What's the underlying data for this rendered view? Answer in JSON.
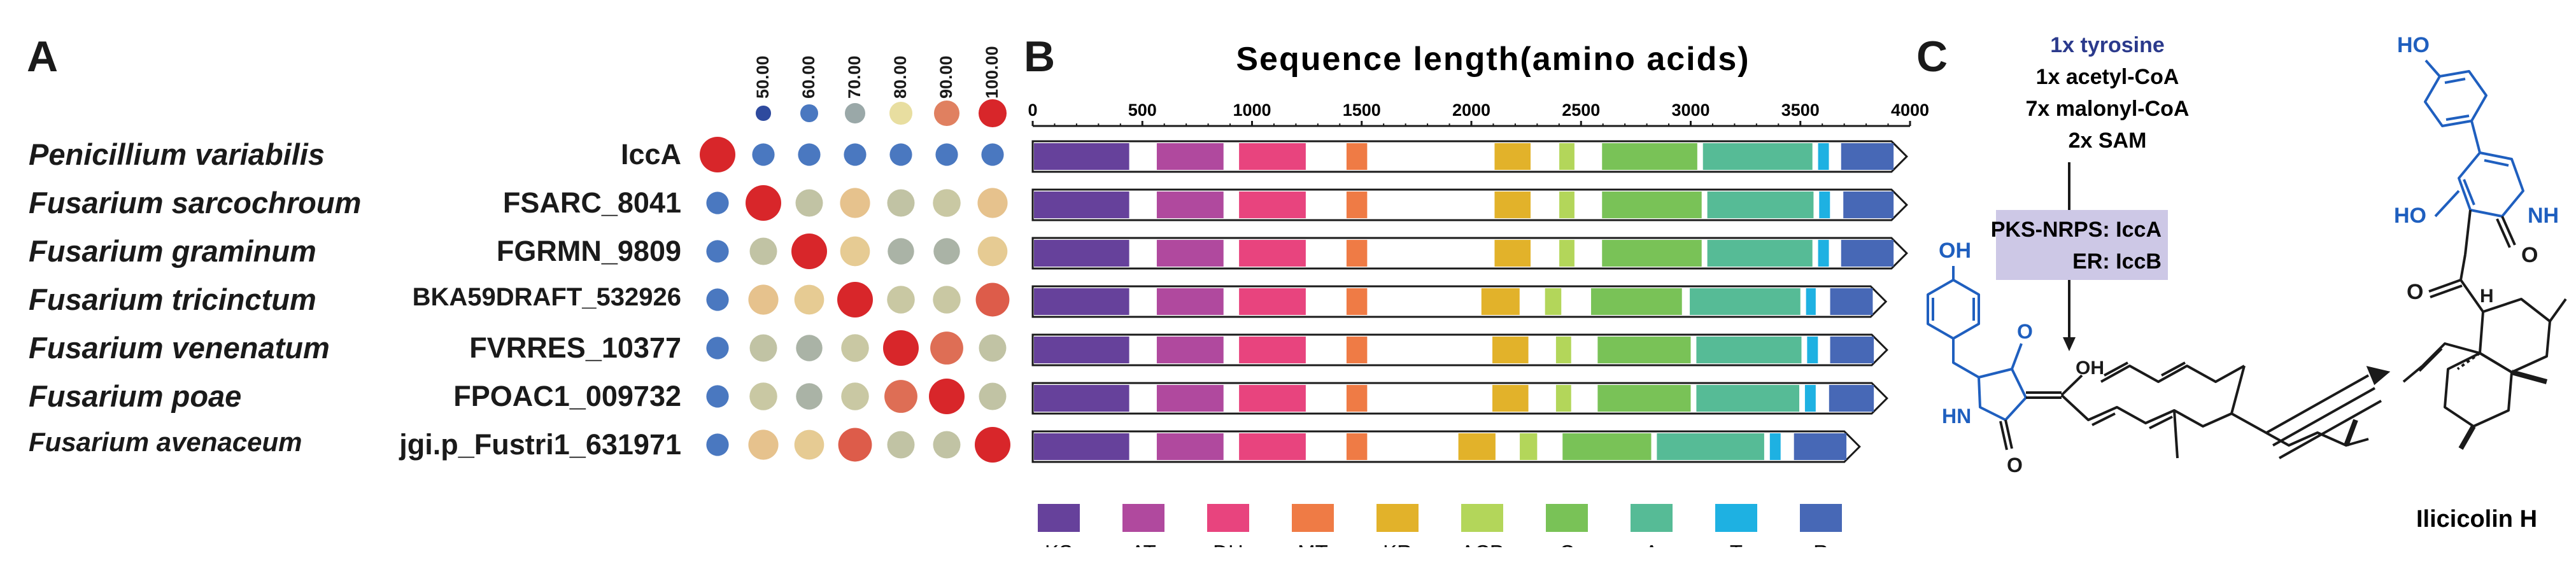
{
  "panels": {
    "a": "A",
    "b": "B",
    "c": "C"
  },
  "colors": {
    "heat_50": "#2e4a9e",
    "heat_60": "#4a78c0",
    "heat_70": "#9aa8a8",
    "heat_80": "#e8dea0",
    "heat_90": "#e08060",
    "heat_100": "#d8262a",
    "chem_blue": "#1f5fbf",
    "precursor_text": "#2b3a8c",
    "enzyme_box": "#cdc8e6"
  },
  "identity_scale": {
    "labels": [
      "50.00",
      "60.00",
      "70.00",
      "80.00",
      "90.00",
      "100.00"
    ],
    "values": [
      50,
      60,
      70,
      80,
      90,
      100
    ]
  },
  "organisms": [
    {
      "species": "Penicillium variabilis",
      "gene": "IccA",
      "identity": [
        100,
        60,
        60,
        60,
        60,
        60,
        60
      ]
    },
    {
      "species": "Fusarium sarcochroum",
      "gene": "FSARC_8041",
      "identity": [
        60,
        100,
        75,
        83,
        75,
        76,
        83
      ]
    },
    {
      "species": "Fusarium graminum",
      "gene": "FGRMN_9809",
      "identity": [
        60,
        75,
        100,
        82,
        72,
        72,
        82
      ]
    },
    {
      "species": "Fusarium tricinctum",
      "gene": "BKA59DRAFT_532926",
      "identity": [
        60,
        83,
        82,
        100,
        76,
        76,
        94
      ]
    },
    {
      "species": "Fusarium venenatum",
      "gene": "FVRRES_10377",
      "identity": [
        60,
        75,
        72,
        76,
        100,
        92,
        75
      ]
    },
    {
      "species": "Fusarium poae",
      "gene": "FPOAC1_009732",
      "identity": [
        60,
        76,
        72,
        76,
        92,
        100,
        75
      ]
    },
    {
      "species": "Fusarium avenaceum",
      "gene": "jgi.p_Fustri1_631971",
      "identity": [
        60,
        83,
        82,
        94,
        75,
        75,
        100
      ]
    }
  ],
  "chart_data": {
    "type": "bar",
    "title": "Sequence length(amino acids)",
    "xlim": [
      0,
      4000
    ],
    "ticks": [
      0,
      500,
      1000,
      1500,
      2000,
      2500,
      3000,
      3500,
      4000
    ],
    "categories": [
      "IccA",
      "FSARC_8041",
      "FGRMN_9809",
      "BKA59DRAFT_532926",
      "FVRRES_10377",
      "FPOAC1_009732",
      "jgi.p_Fustri1_631971"
    ],
    "lengths": [
      3985,
      3985,
      3985,
      3890,
      3895,
      3895,
      3770
    ],
    "domain_types": [
      {
        "code": "KS",
        "color": "#66419b"
      },
      {
        "code": "AT",
        "color": "#b0499e"
      },
      {
        "code": "DH",
        "color": "#e8447e"
      },
      {
        "code": "MT",
        "color": "#ef7b45"
      },
      {
        "code": "KR",
        "color": "#e2b22a"
      },
      {
        "code": "ACP",
        "color": "#b3d65a"
      },
      {
        "code": "C",
        "color": "#79c257"
      },
      {
        "code": "A",
        "color": "#56bb96"
      },
      {
        "code": "T",
        "color": "#1eb1e2"
      },
      {
        "code": "R",
        "color": "#4768b6"
      }
    ],
    "series": [
      {
        "name": "IccA",
        "domains": [
          {
            "type": "KS",
            "start": 0,
            "end": 440
          },
          {
            "type": "AT",
            "start": 560,
            "end": 870
          },
          {
            "type": "DH",
            "start": 935,
            "end": 1245
          },
          {
            "type": "MT",
            "start": 1425,
            "end": 1525
          },
          {
            "type": "KR",
            "start": 2100,
            "end": 2270
          },
          {
            "type": "ACP",
            "start": 2395,
            "end": 2470
          },
          {
            "type": "C",
            "start": 2590,
            "end": 3030
          },
          {
            "type": "A",
            "start": 3050,
            "end": 3555
          },
          {
            "type": "T",
            "start": 3575,
            "end": 3630
          },
          {
            "type": "R",
            "start": 3680,
            "end": 3985
          }
        ]
      },
      {
        "name": "FSARC_8041",
        "domains": [
          {
            "type": "KS",
            "start": 0,
            "end": 440
          },
          {
            "type": "AT",
            "start": 560,
            "end": 870
          },
          {
            "type": "DH",
            "start": 935,
            "end": 1245
          },
          {
            "type": "MT",
            "start": 1425,
            "end": 1525
          },
          {
            "type": "KR",
            "start": 2100,
            "end": 2270
          },
          {
            "type": "ACP",
            "start": 2395,
            "end": 2470
          },
          {
            "type": "C",
            "start": 2590,
            "end": 3050
          },
          {
            "type": "A",
            "start": 3070,
            "end": 3560
          },
          {
            "type": "T",
            "start": 3580,
            "end": 3635
          },
          {
            "type": "R",
            "start": 3690,
            "end": 3985
          }
        ]
      },
      {
        "name": "FGRMN_9809",
        "domains": [
          {
            "type": "KS",
            "start": 0,
            "end": 440
          },
          {
            "type": "AT",
            "start": 560,
            "end": 870
          },
          {
            "type": "DH",
            "start": 935,
            "end": 1245
          },
          {
            "type": "MT",
            "start": 1425,
            "end": 1525
          },
          {
            "type": "KR",
            "start": 2100,
            "end": 2270
          },
          {
            "type": "ACP",
            "start": 2395,
            "end": 2470
          },
          {
            "type": "C",
            "start": 2590,
            "end": 3050
          },
          {
            "type": "A",
            "start": 3070,
            "end": 3555
          },
          {
            "type": "T",
            "start": 3575,
            "end": 3630
          },
          {
            "type": "R",
            "start": 3680,
            "end": 3985
          }
        ]
      },
      {
        "name": "BKA59DRAFT_532926",
        "domains": [
          {
            "type": "KS",
            "start": 0,
            "end": 440
          },
          {
            "type": "AT",
            "start": 560,
            "end": 870
          },
          {
            "type": "DH",
            "start": 935,
            "end": 1245
          },
          {
            "type": "MT",
            "start": 1425,
            "end": 1525
          },
          {
            "type": "KR",
            "start": 2040,
            "end": 2220
          },
          {
            "type": "ACP",
            "start": 2330,
            "end": 2410
          },
          {
            "type": "C",
            "start": 2540,
            "end": 2960
          },
          {
            "type": "A",
            "start": 2990,
            "end": 3500
          },
          {
            "type": "T",
            "start": 3520,
            "end": 3570
          },
          {
            "type": "R",
            "start": 3630,
            "end": 3890
          }
        ]
      },
      {
        "name": "FVRRES_10377",
        "domains": [
          {
            "type": "KS",
            "start": 0,
            "end": 440
          },
          {
            "type": "AT",
            "start": 560,
            "end": 870
          },
          {
            "type": "DH",
            "start": 935,
            "end": 1245
          },
          {
            "type": "MT",
            "start": 1425,
            "end": 1525
          },
          {
            "type": "KR",
            "start": 2090,
            "end": 2260
          },
          {
            "type": "ACP",
            "start": 2380,
            "end": 2455
          },
          {
            "type": "C",
            "start": 2570,
            "end": 3000
          },
          {
            "type": "A",
            "start": 3020,
            "end": 3505
          },
          {
            "type": "T",
            "start": 3525,
            "end": 3580
          },
          {
            "type": "R",
            "start": 3630,
            "end": 3895
          }
        ]
      },
      {
        "name": "FPOAC1_009732",
        "domains": [
          {
            "type": "KS",
            "start": 0,
            "end": 440
          },
          {
            "type": "AT",
            "start": 560,
            "end": 870
          },
          {
            "type": "DH",
            "start": 935,
            "end": 1245
          },
          {
            "type": "MT",
            "start": 1425,
            "end": 1525
          },
          {
            "type": "KR",
            "start": 2090,
            "end": 2260
          },
          {
            "type": "ACP",
            "start": 2380,
            "end": 2455
          },
          {
            "type": "C",
            "start": 2570,
            "end": 3000
          },
          {
            "type": "A",
            "start": 3020,
            "end": 3495
          },
          {
            "type": "T",
            "start": 3515,
            "end": 3570
          },
          {
            "type": "R",
            "start": 3625,
            "end": 3895
          }
        ]
      },
      {
        "name": "jgi.p_Fustri1_631971",
        "domains": [
          {
            "type": "KS",
            "start": 0,
            "end": 440
          },
          {
            "type": "AT",
            "start": 560,
            "end": 870
          },
          {
            "type": "DH",
            "start": 935,
            "end": 1245
          },
          {
            "type": "MT",
            "start": 1425,
            "end": 1525
          },
          {
            "type": "KR",
            "start": 1935,
            "end": 2110
          },
          {
            "type": "ACP",
            "start": 2215,
            "end": 2300
          },
          {
            "type": "C",
            "start": 2410,
            "end": 2820
          },
          {
            "type": "A",
            "start": 2840,
            "end": 3335
          },
          {
            "type": "T",
            "start": 3355,
            "end": 3410
          },
          {
            "type": "R",
            "start": 3465,
            "end": 3720
          }
        ]
      }
    ]
  },
  "pathway": {
    "precursors_highlight": "1x tyrosine",
    "precursors": [
      "1x acetyl-CoA",
      "7x malonyl-CoA",
      "2x SAM"
    ],
    "enzymes": [
      "PKS-NRPS: IccA",
      "ER: IccB"
    ],
    "intermediate_atoms": {
      "oh_phenol": "OH",
      "ketone_o": "O",
      "lactam_o": "O",
      "enol_oh": "OH",
      "nh": "HN"
    },
    "product_atoms": {
      "ho_phenol": "HO",
      "enol_ho": "HO",
      "nh": "NH",
      "lactam_o": "O",
      "ketone_o": "O",
      "h": "H"
    },
    "product_name": "Ilicicolin H"
  }
}
